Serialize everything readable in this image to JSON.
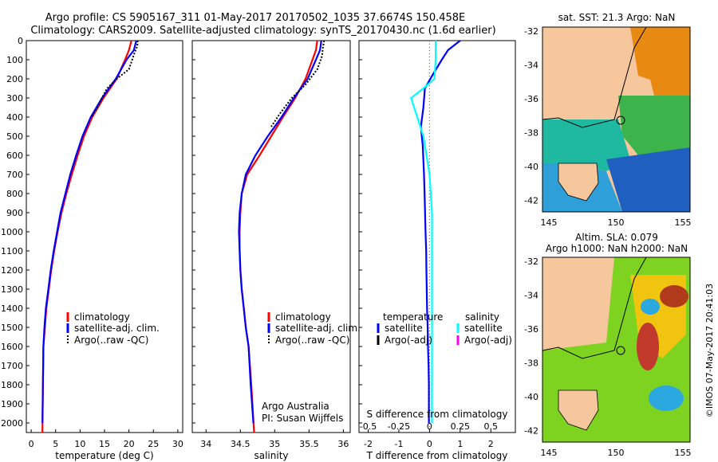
{
  "title_line1": "Argo profile: CS 5905167_311 01-May-2017 20170502_1035 37.6674S 150.458E",
  "title_line2": "Climatology: CARS2009. Satellite-adjusted climatology: synTS_20170430.nc (1.6d earlier)",
  "colors": {
    "climatology": "#ff0000",
    "satellite": "#0000ff",
    "argo": "#000000",
    "salinity_satellite": "#00ffff",
    "salinity_argo": "#ff00ff",
    "land": "#f6c79c"
  },
  "y_ticks": [
    "0",
    "100",
    "200",
    "300",
    "400",
    "500",
    "600",
    "700",
    "800",
    "900",
    "1000",
    "1100",
    "1200",
    "1300",
    "1400",
    "1500",
    "1600",
    "1700",
    "1800",
    "1900",
    "2000"
  ],
  "legend_tempsal": {
    "climatology": "climatology",
    "satellite": "satellite-adj. clim.",
    "argo": "Argo(..raw -QC)"
  },
  "legend_diff": {
    "temperature_header": "temperature",
    "salinity_header": "salinity",
    "t_satellite": "satellite",
    "t_argo": "Argo(-adj)",
    "s_satellite": "satellite",
    "s_argo": "Argo(-adj)"
  },
  "annotations": {
    "argo_australia": "Argo Australia",
    "pi": "PI: Susan Wijffels",
    "s_diff_label": "S difference from climatology",
    "credit": "©IMOS 07-May-2017 20:41:03"
  },
  "maps": {
    "sst_title": "sat. SST: 21.3 Argo: NaN",
    "sla_title1": "Altim. SLA: 0.079",
    "sla_title2": "Argo h1000: NaN h2000: NaN",
    "lat_ticks": [
      "-32",
      "-34",
      "-36",
      "-38",
      "-40",
      "-42"
    ],
    "lon_ticks": [
      "145",
      "150",
      "155"
    ]
  },
  "chart_data": [
    {
      "type": "line",
      "xlabel": "temperature (deg C)",
      "xlim": [
        -1,
        31
      ],
      "ylim": [
        0,
        2050
      ],
      "y_reversed": true,
      "x_ticks": [
        "0",
        "5",
        "10",
        "15",
        "20",
        "25",
        "30"
      ],
      "series": [
        {
          "name": "climatology",
          "x": [
            20.5,
            20.0,
            19.2,
            17.5,
            14.8,
            12.5,
            10.8,
            9.5,
            8.3,
            7.2,
            6.2,
            5.4,
            4.7,
            4.1,
            3.6,
            3.1,
            2.8,
            2.5,
            2.4,
            2.3
          ],
          "y": [
            0,
            50,
            100,
            200,
            300,
            400,
            500,
            600,
            700,
            800,
            900,
            1000,
            1100,
            1200,
            1300,
            1400,
            1500,
            1600,
            1800,
            2050
          ]
        },
        {
          "name": "satellite-adj. clim.",
          "x": [
            21.5,
            21.0,
            19.5,
            17.3,
            14.5,
            12.2,
            10.5,
            9.2,
            8.0,
            7.0,
            6.0,
            5.3,
            4.6,
            4.0,
            3.5,
            3.0,
            2.7,
            2.5,
            2.4,
            2.3
          ],
          "y": [
            0,
            50,
            100,
            200,
            300,
            400,
            500,
            600,
            700,
            800,
            900,
            1000,
            1100,
            1200,
            1300,
            1400,
            1500,
            1600,
            1800,
            2000
          ]
        },
        {
          "name": "Argo(..raw -QC)",
          "x": [
            21.8,
            21.7,
            21.2,
            20.8,
            20.0,
            17.5,
            15.5,
            14.5,
            13.5,
            12.3
          ],
          "y": [
            0,
            30,
            60,
            90,
            150,
            200,
            250,
            300,
            350,
            400
          ]
        }
      ]
    },
    {
      "type": "line",
      "xlabel": "salinity",
      "xlim": [
        33.8,
        36.1
      ],
      "ylim": [
        0,
        2050
      ],
      "y_reversed": true,
      "x_ticks": [
        "34",
        "34.5",
        "35",
        "35.5",
        "36"
      ],
      "series": [
        {
          "name": "climatology",
          "x": [
            35.62,
            35.6,
            35.55,
            35.45,
            35.3,
            35.12,
            34.95,
            34.78,
            34.6,
            34.52,
            34.5,
            34.49,
            34.49,
            34.5,
            34.52,
            34.55,
            34.58,
            34.62,
            34.66,
            34.7
          ],
          "y": [
            0,
            50,
            100,
            200,
            300,
            400,
            500,
            600,
            700,
            800,
            900,
            1000,
            1100,
            1200,
            1300,
            1400,
            1500,
            1600,
            1800,
            2050
          ]
        },
        {
          "name": "satellite-adj. clim.",
          "x": [
            35.68,
            35.66,
            35.6,
            35.48,
            35.28,
            35.1,
            34.9,
            34.72,
            34.58,
            34.52,
            34.49,
            34.48,
            34.49,
            34.5,
            34.52,
            34.55,
            34.58,
            34.62,
            34.65,
            34.69
          ],
          "y": [
            0,
            50,
            100,
            200,
            300,
            400,
            500,
            600,
            700,
            800,
            900,
            1000,
            1100,
            1200,
            1300,
            1400,
            1500,
            1600,
            1800,
            2000
          ]
        },
        {
          "name": "Argo(..raw -QC)",
          "x": [
            35.72,
            35.7,
            35.69,
            35.62,
            35.45,
            35.25,
            35.08,
            34.95
          ],
          "y": [
            0,
            40,
            80,
            150,
            230,
            300,
            380,
            450
          ]
        }
      ]
    },
    {
      "type": "line",
      "xlabel": "T difference from climatology",
      "xlim": [
        -2.3,
        2.8
      ],
      "ylim": [
        0,
        2050
      ],
      "y_reversed": true,
      "x_ticks": [
        "-2",
        "-1",
        "0",
        "1",
        "2"
      ],
      "s_x_ticks": [
        "-0.5",
        "-0.25",
        "0",
        "0.25",
        "0.5"
      ],
      "series": [
        {
          "name": "temperature satellite",
          "x": [
            1.0,
            0.8,
            0.6,
            0.4,
            0.1,
            -0.15,
            -0.2,
            -0.28,
            -0.22,
            -0.18,
            -0.16,
            -0.13,
            -0.11,
            -0.1,
            -0.09,
            -0.08,
            -0.06,
            -0.05,
            -0.03,
            -0.02,
            -0.02
          ],
          "y": [
            0,
            25,
            50,
            100,
            180,
            250,
            350,
            450,
            550,
            700,
            800,
            1000,
            1100,
            1200,
            1300,
            1400,
            1500,
            1600,
            1700,
            1800,
            2000
          ]
        },
        {
          "name": "salinity satellite",
          "x": [
            0.05,
            0.05,
            0.04,
            -0.05,
            -0.15,
            -0.1,
            -0.05,
            0,
            0.02,
            0.02,
            0.02,
            0.02
          ],
          "y": [
            0,
            100,
            200,
            250,
            300,
            400,
            500,
            700,
            900,
            1200,
            1600,
            2000
          ]
        }
      ]
    }
  ]
}
